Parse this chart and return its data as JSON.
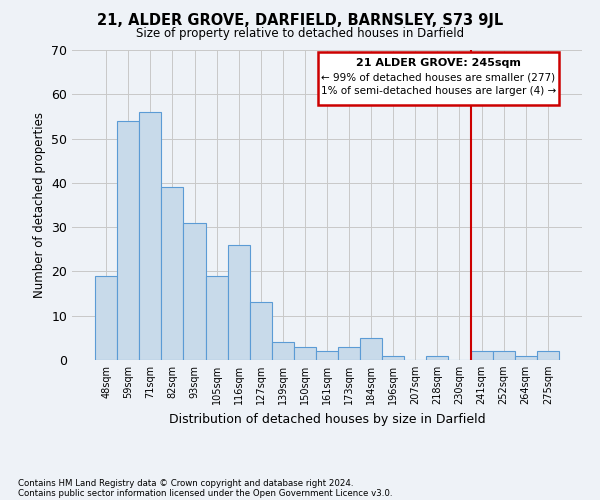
{
  "title": "21, ALDER GROVE, DARFIELD, BARNSLEY, S73 9JL",
  "subtitle": "Size of property relative to detached houses in Darfield",
  "xlabel": "Distribution of detached houses by size in Darfield",
  "ylabel": "Number of detached properties",
  "categories": [
    "48sqm",
    "59sqm",
    "71sqm",
    "82sqm",
    "93sqm",
    "105sqm",
    "116sqm",
    "127sqm",
    "139sqm",
    "150sqm",
    "161sqm",
    "173sqm",
    "184sqm",
    "196sqm",
    "207sqm",
    "218sqm",
    "230sqm",
    "241sqm",
    "252sqm",
    "264sqm",
    "275sqm"
  ],
  "values": [
    19,
    54,
    56,
    39,
    31,
    19,
    26,
    13,
    4,
    3,
    2,
    3,
    5,
    1,
    0,
    1,
    0,
    2,
    2,
    1,
    2
  ],
  "bar_color": "#c8daea",
  "bar_edge_color": "#5b9bd5",
  "vline_index": 17,
  "annotation_text_line1": "21 ALDER GROVE: 245sqm",
  "annotation_text_line2": "← 99% of detached houses are smaller (277)",
  "annotation_text_line3": "1% of semi-detached houses are larger (4) →",
  "annotation_box_color": "#cc0000",
  "vline_color": "#cc0000",
  "ylim": [
    0,
    70
  ],
  "yticks": [
    0,
    10,
    20,
    30,
    40,
    50,
    60,
    70
  ],
  "grid_color": "#c8c8c8",
  "background_color": "#eef2f7",
  "footer_line1": "Contains HM Land Registry data © Crown copyright and database right 2024.",
  "footer_line2": "Contains public sector information licensed under the Open Government Licence v3.0."
}
